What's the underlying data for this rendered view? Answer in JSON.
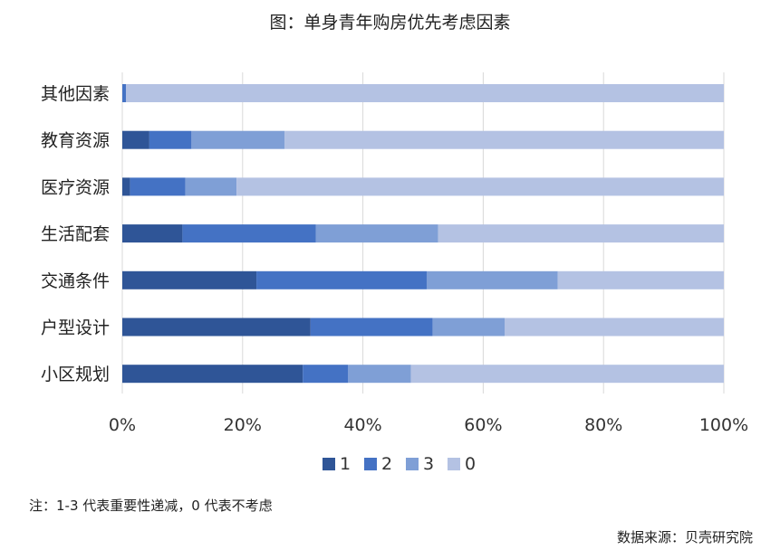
{
  "chart_data": {
    "type": "bar",
    "orientation": "horizontal",
    "stacked": true,
    "title": "图：单身青年购房优先考虑因素",
    "categories": [
      "其他因素",
      "教育资源",
      "医疗资源",
      "生活配套",
      "交通条件",
      "户型设计",
      "小区规划"
    ],
    "series": [
      {
        "name": "1",
        "color": "#2f5597",
        "values": [
          0,
          4.5,
          1.3,
          10,
          22.3,
          31.3,
          30
        ]
      },
      {
        "name": "2",
        "color": "#4472c4",
        "values": [
          0.6,
          7,
          9.2,
          22.2,
          28.3,
          20.3,
          7.5
        ]
      },
      {
        "name": "3",
        "color": "#7f9fd6",
        "values": [
          0,
          15.5,
          8.5,
          20.3,
          21.8,
          12,
          10.5
        ]
      },
      {
        "name": "0",
        "color": "#b4c2e3",
        "values": [
          99.4,
          73,
          81,
          47.5,
          27.6,
          36.4,
          52
        ]
      }
    ],
    "xlim": [
      0,
      100
    ],
    "xticks": [
      "0%",
      "20%",
      "40%",
      "60%",
      "80%",
      "100%"
    ],
    "grid": true,
    "legend_position": "bottom"
  },
  "note": "注：1-3 代表重要性递减，0 代表不考虑",
  "source": "数据来源：贝壳研究院"
}
